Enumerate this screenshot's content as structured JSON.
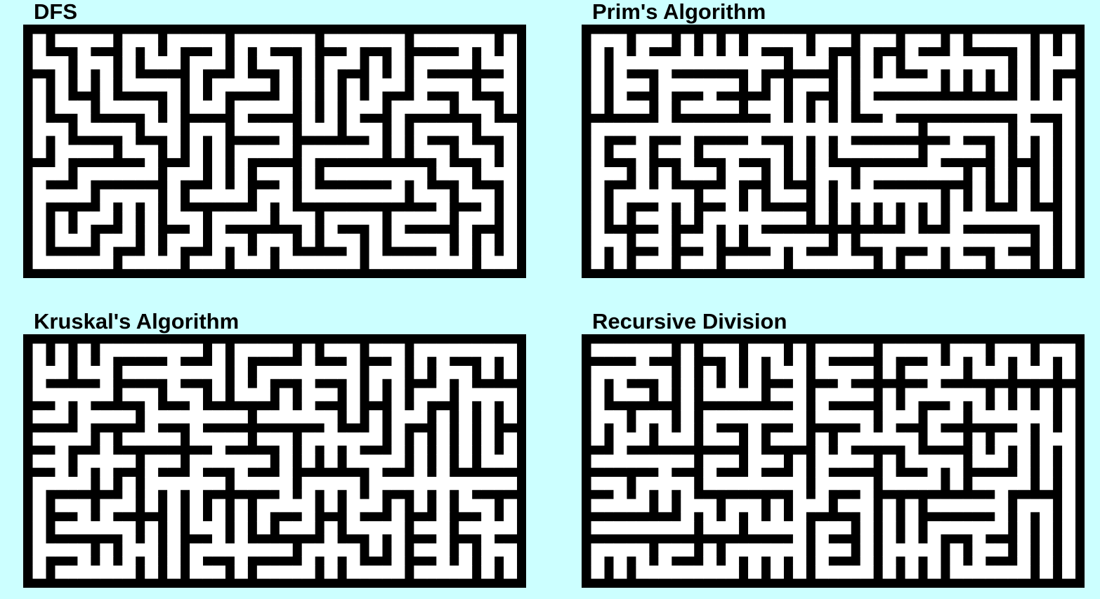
{
  "colors": {
    "background": "#ccffff",
    "wall": "#000000",
    "passage": "#ffffff"
  },
  "panels": [
    {
      "id": "dfs",
      "title": "DFS",
      "algorithm": "dfs",
      "grid": {
        "cols": 22,
        "rows": 11
      }
    },
    {
      "id": "prims",
      "title": "Prim's Algorithm",
      "algorithm": "prims",
      "grid": {
        "cols": 22,
        "rows": 11
      }
    },
    {
      "id": "kruskal",
      "title": "Kruskal's Algorithm",
      "algorithm": "kruskal",
      "grid": {
        "cols": 22,
        "rows": 11
      }
    },
    {
      "id": "recursive-division",
      "title": "Recursive Division",
      "algorithm": "recursive_division",
      "grid": {
        "cols": 22,
        "rows": 11
      }
    }
  ]
}
